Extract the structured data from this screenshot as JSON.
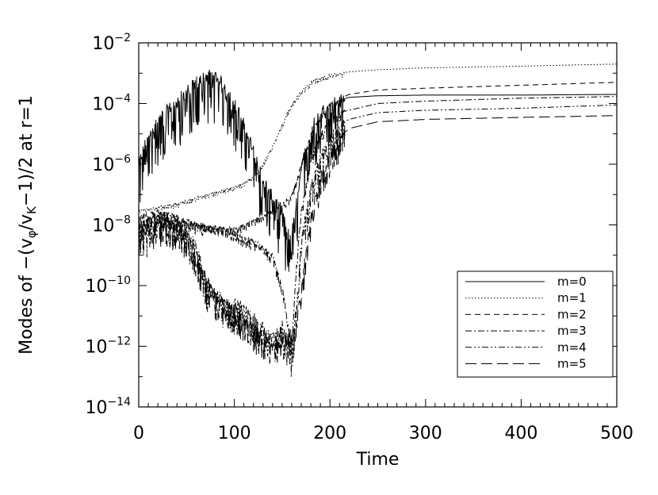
{
  "chart_data": {
    "type": "line",
    "title": "",
    "xlabel": "Time",
    "ylabel": "Modes of  −(v_φ/v_K−1)/2 at r=1",
    "ylabel_parts": {
      "prefix": "Modes of  −(v",
      "sub1": "φ",
      "mid": "/v",
      "sub2": "K",
      "suffix": "−1)/2 at r=1"
    },
    "xlim": [
      0,
      500
    ],
    "ylim": [
      1e-14,
      0.01
    ],
    "yscale": "log",
    "x_ticks": [
      0,
      100,
      200,
      300,
      400,
      500
    ],
    "y_ticks": [
      {
        "base": "10",
        "exp": "−14",
        "value": 1e-14
      },
      {
        "base": "10",
        "exp": "−12",
        "value": 1e-12
      },
      {
        "base": "10",
        "exp": "−10",
        "value": 1e-10
      },
      {
        "base": "10",
        "exp": "−8",
        "value": 1e-08
      },
      {
        "base": "10",
        "exp": "−6",
        "value": 1e-06
      },
      {
        "base": "10",
        "exp": "−4",
        "value": 0.0001
      },
      {
        "base": "10",
        "exp": "−2",
        "value": 0.01
      }
    ],
    "grid": false,
    "legend_position": "lower-right",
    "series": [
      {
        "name": "m=0",
        "dash": "solid",
        "noise": 1.6,
        "x": [
          0,
          10,
          20,
          30,
          40,
          50,
          60,
          70,
          75,
          80,
          90,
          100,
          110,
          120,
          130,
          140,
          150,
          155,
          160,
          165,
          170,
          180,
          190,
          200,
          220,
          250,
          300,
          400,
          500
        ],
        "y": [
          1e-06,
          1e-05,
          3e-05,
          6e-05,
          0.00012,
          0.00025,
          0.0005,
          0.0008,
          0.0009,
          0.0008,
          0.0004,
          0.00012,
          2e-05,
          3e-06,
          3e-07,
          8e-08,
          3e-08,
          5e-09,
          5e-09,
          6e-08,
          8e-07,
          1.5e-05,
          5e-05,
          0.0001,
          0.00016,
          0.00018,
          0.00019,
          0.00019,
          0.0002
        ]
      },
      {
        "name": "m=1",
        "dash": "dotted",
        "noise": 0.15,
        "x": [
          0,
          20,
          40,
          60,
          80,
          100,
          110,
          120,
          130,
          140,
          150,
          160,
          170,
          180,
          190,
          200,
          220,
          250,
          300,
          400,
          500
        ],
        "y": [
          3e-08,
          4e-08,
          5e-08,
          8e-08,
          1.2e-07,
          1.8e-07,
          2.5e-07,
          4e-07,
          1e-06,
          4e-06,
          2e-05,
          0.0001,
          0.00025,
          0.0005,
          0.0007,
          0.0009,
          0.0011,
          0.0013,
          0.0015,
          0.0017,
          0.002
        ]
      },
      {
        "name": "m=2",
        "dash": "short-dashed",
        "noise": 0.25,
        "x": [
          0,
          20,
          40,
          60,
          80,
          100,
          110,
          120,
          130,
          140,
          150,
          160,
          170,
          180,
          190,
          200,
          220,
          250,
          300,
          400,
          500
        ],
        "y": [
          2e-08,
          3e-08,
          2e-08,
          1.2e-08,
          8e-09,
          8e-09,
          1e-08,
          1.5e-08,
          2e-08,
          3e-08,
          5e-08,
          1e-07,
          1e-06,
          1e-05,
          4e-05,
          0.0001,
          0.0002,
          0.00028,
          0.00032,
          0.0004,
          0.0005
        ]
      },
      {
        "name": "m=3",
        "dash": "dash-dot",
        "noise": 0.35,
        "x": [
          0,
          20,
          40,
          60,
          80,
          100,
          110,
          120,
          130,
          140,
          150,
          155,
          160,
          165,
          170,
          180,
          190,
          200,
          210,
          220,
          250,
          300,
          400,
          500
        ],
        "y": [
          1.5e-08,
          2e-08,
          1.5e-08,
          1e-08,
          9e-09,
          6e-09,
          4e-09,
          3e-09,
          2e-09,
          1e-09,
          1e-10,
          1e-11,
          1e-12,
          5e-10,
          3e-08,
          1.5e-06,
          1e-05,
          3e-05,
          5e-05,
          6e-05,
          0.0001,
          0.00012,
          0.00015,
          0.00017
        ]
      },
      {
        "name": "m=4",
        "dash": "dash-dot-dot",
        "noise": 1.1,
        "x": [
          0,
          10,
          20,
          30,
          40,
          50,
          60,
          70,
          80,
          90,
          100,
          110,
          120,
          130,
          140,
          150,
          160,
          165,
          170,
          180,
          190,
          200,
          210,
          220,
          250,
          300,
          400,
          500
        ],
        "y": [
          1e-08,
          1e-08,
          2e-08,
          2e-08,
          1.5e-08,
          8e-09,
          2e-09,
          2e-10,
          6e-11,
          4e-11,
          3e-11,
          2e-11,
          1e-11,
          5e-12,
          3e-12,
          5e-12,
          1e-12,
          2e-11,
          3e-09,
          2e-07,
          2e-06,
          1e-05,
          2e-05,
          3e-05,
          5e-05,
          6e-05,
          7e-05,
          9e-05
        ]
      },
      {
        "name": "m=5",
        "dash": "long-dashed",
        "noise": 0.9,
        "x": [
          0,
          20,
          40,
          50,
          60,
          70,
          80,
          90,
          100,
          110,
          120,
          130,
          140,
          150,
          160,
          165,
          170,
          180,
          190,
          200,
          210,
          220,
          250,
          300,
          400,
          500
        ],
        "y": [
          1e-08,
          1.5e-08,
          1e-08,
          5e-09,
          1e-09,
          2e-10,
          5e-11,
          3e-11,
          2e-11,
          1e-11,
          5e-12,
          2e-12,
          1e-12,
          3e-12,
          3e-12,
          6e-12,
          1e-10,
          2e-08,
          4e-07,
          3e-06,
          8e-06,
          1.5e-05,
          2.5e-05,
          3e-05,
          3.5e-05,
          4e-05
        ]
      }
    ]
  }
}
